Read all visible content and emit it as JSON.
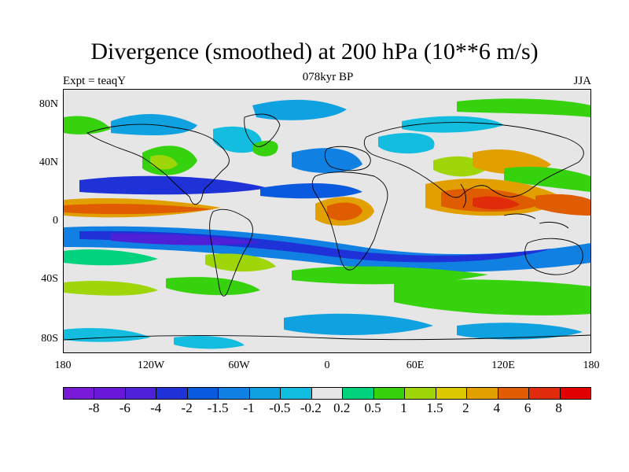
{
  "title": "Divergence (smoothed) at 200 hPa (10**6 m/s)",
  "left_label": "Expt = teaqY",
  "center_label": "078kyr BP",
  "right_label": "JJA",
  "lat_ticks": [
    "80N",
    "40N",
    "0",
    "40S",
    "80S"
  ],
  "lon_ticks": [
    "180",
    "120W",
    "60W",
    "0",
    "60E",
    "120E",
    "180"
  ],
  "colorbar": {
    "labels": [
      "-8",
      "-6",
      "-4",
      "-2",
      "-1.5",
      "-1",
      "-0.5",
      "-0.2",
      "0.2",
      "0.5",
      "1",
      "1.5",
      "2",
      "4",
      "6",
      "8"
    ],
    "colors": [
      "#7a1ad9",
      "#6a18d8",
      "#4e20d8",
      "#1e32d8",
      "#0a5ae0",
      "#1080e2",
      "#10a2e0",
      "#12bde0",
      "#e6e6e6",
      "#00d27e",
      "#36d20e",
      "#9ed60a",
      "#dcc800",
      "#e2a000",
      "#e05c00",
      "#e02c0a",
      "#e00000"
    ]
  }
}
